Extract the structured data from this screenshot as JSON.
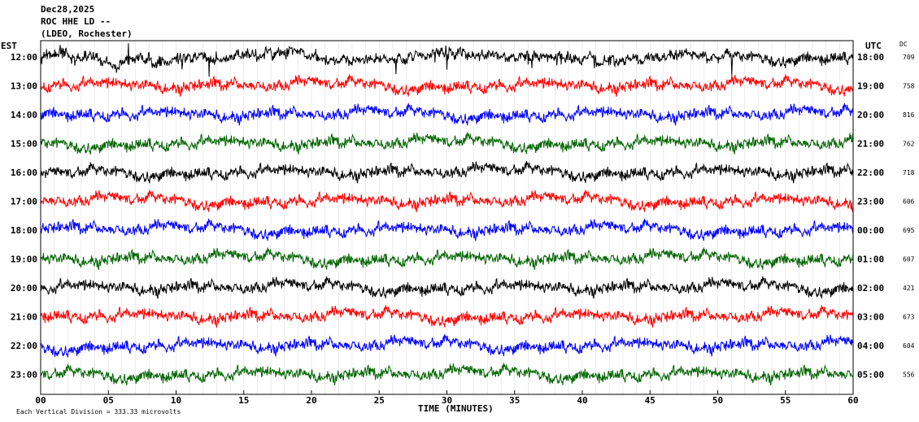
{
  "header": {
    "date": "Dec28,2025",
    "station": "ROC HHE LD --",
    "network": "(LDEO, Rochester)"
  },
  "left_label": "EST",
  "right_label": "UTC",
  "dc_label": "DC",
  "footer": {
    "scale_note": "Each Vertical Division = 333.33 microvolts"
  },
  "chart_data": {
    "type": "line",
    "title": "",
    "xlabel": "TIME (MINUTES)",
    "ylabel": "",
    "xlim": [
      0,
      60
    ],
    "x_ticks": [
      0,
      5,
      10,
      15,
      20,
      25,
      30,
      35,
      40,
      45,
      50,
      55,
      60
    ],
    "x_tick_labels": [
      "00",
      "05",
      "10",
      "15",
      "20",
      "25",
      "30",
      "35",
      "40",
      "45",
      "50",
      "55",
      "60"
    ],
    "colors": [
      "#000000",
      "#ff0000",
      "#0000ff",
      "#006400"
    ],
    "grid": true,
    "traces": [
      {
        "est": "12:00",
        "utc": "18:00",
        "dc": "709",
        "color": "#000000"
      },
      {
        "est": "13:00",
        "utc": "19:00",
        "dc": "758",
        "color": "#ff0000"
      },
      {
        "est": "14:00",
        "utc": "20:00",
        "dc": "816",
        "color": "#0000ff"
      },
      {
        "est": "15:00",
        "utc": "21:00",
        "dc": "762",
        "color": "#006400"
      },
      {
        "est": "16:00",
        "utc": "22:00",
        "dc": "718",
        "color": "#000000"
      },
      {
        "est": "17:00",
        "utc": "23:00",
        "dc": "606",
        "color": "#ff0000"
      },
      {
        "est": "18:00",
        "utc": "00:00",
        "dc": "695",
        "color": "#0000ff"
      },
      {
        "est": "19:00",
        "utc": "01:00",
        "dc": "607",
        "color": "#006400"
      },
      {
        "est": "20:00",
        "utc": "02:00",
        "dc": "421",
        "color": "#000000"
      },
      {
        "est": "21:00",
        "utc": "03:00",
        "dc": "673",
        "color": "#ff0000"
      },
      {
        "est": "22:00",
        "utc": "04:00",
        "dc": "604",
        "color": "#0000ff"
      },
      {
        "est": "23:00",
        "utc": "05:00",
        "dc": "556",
        "color": "#006400"
      }
    ]
  }
}
